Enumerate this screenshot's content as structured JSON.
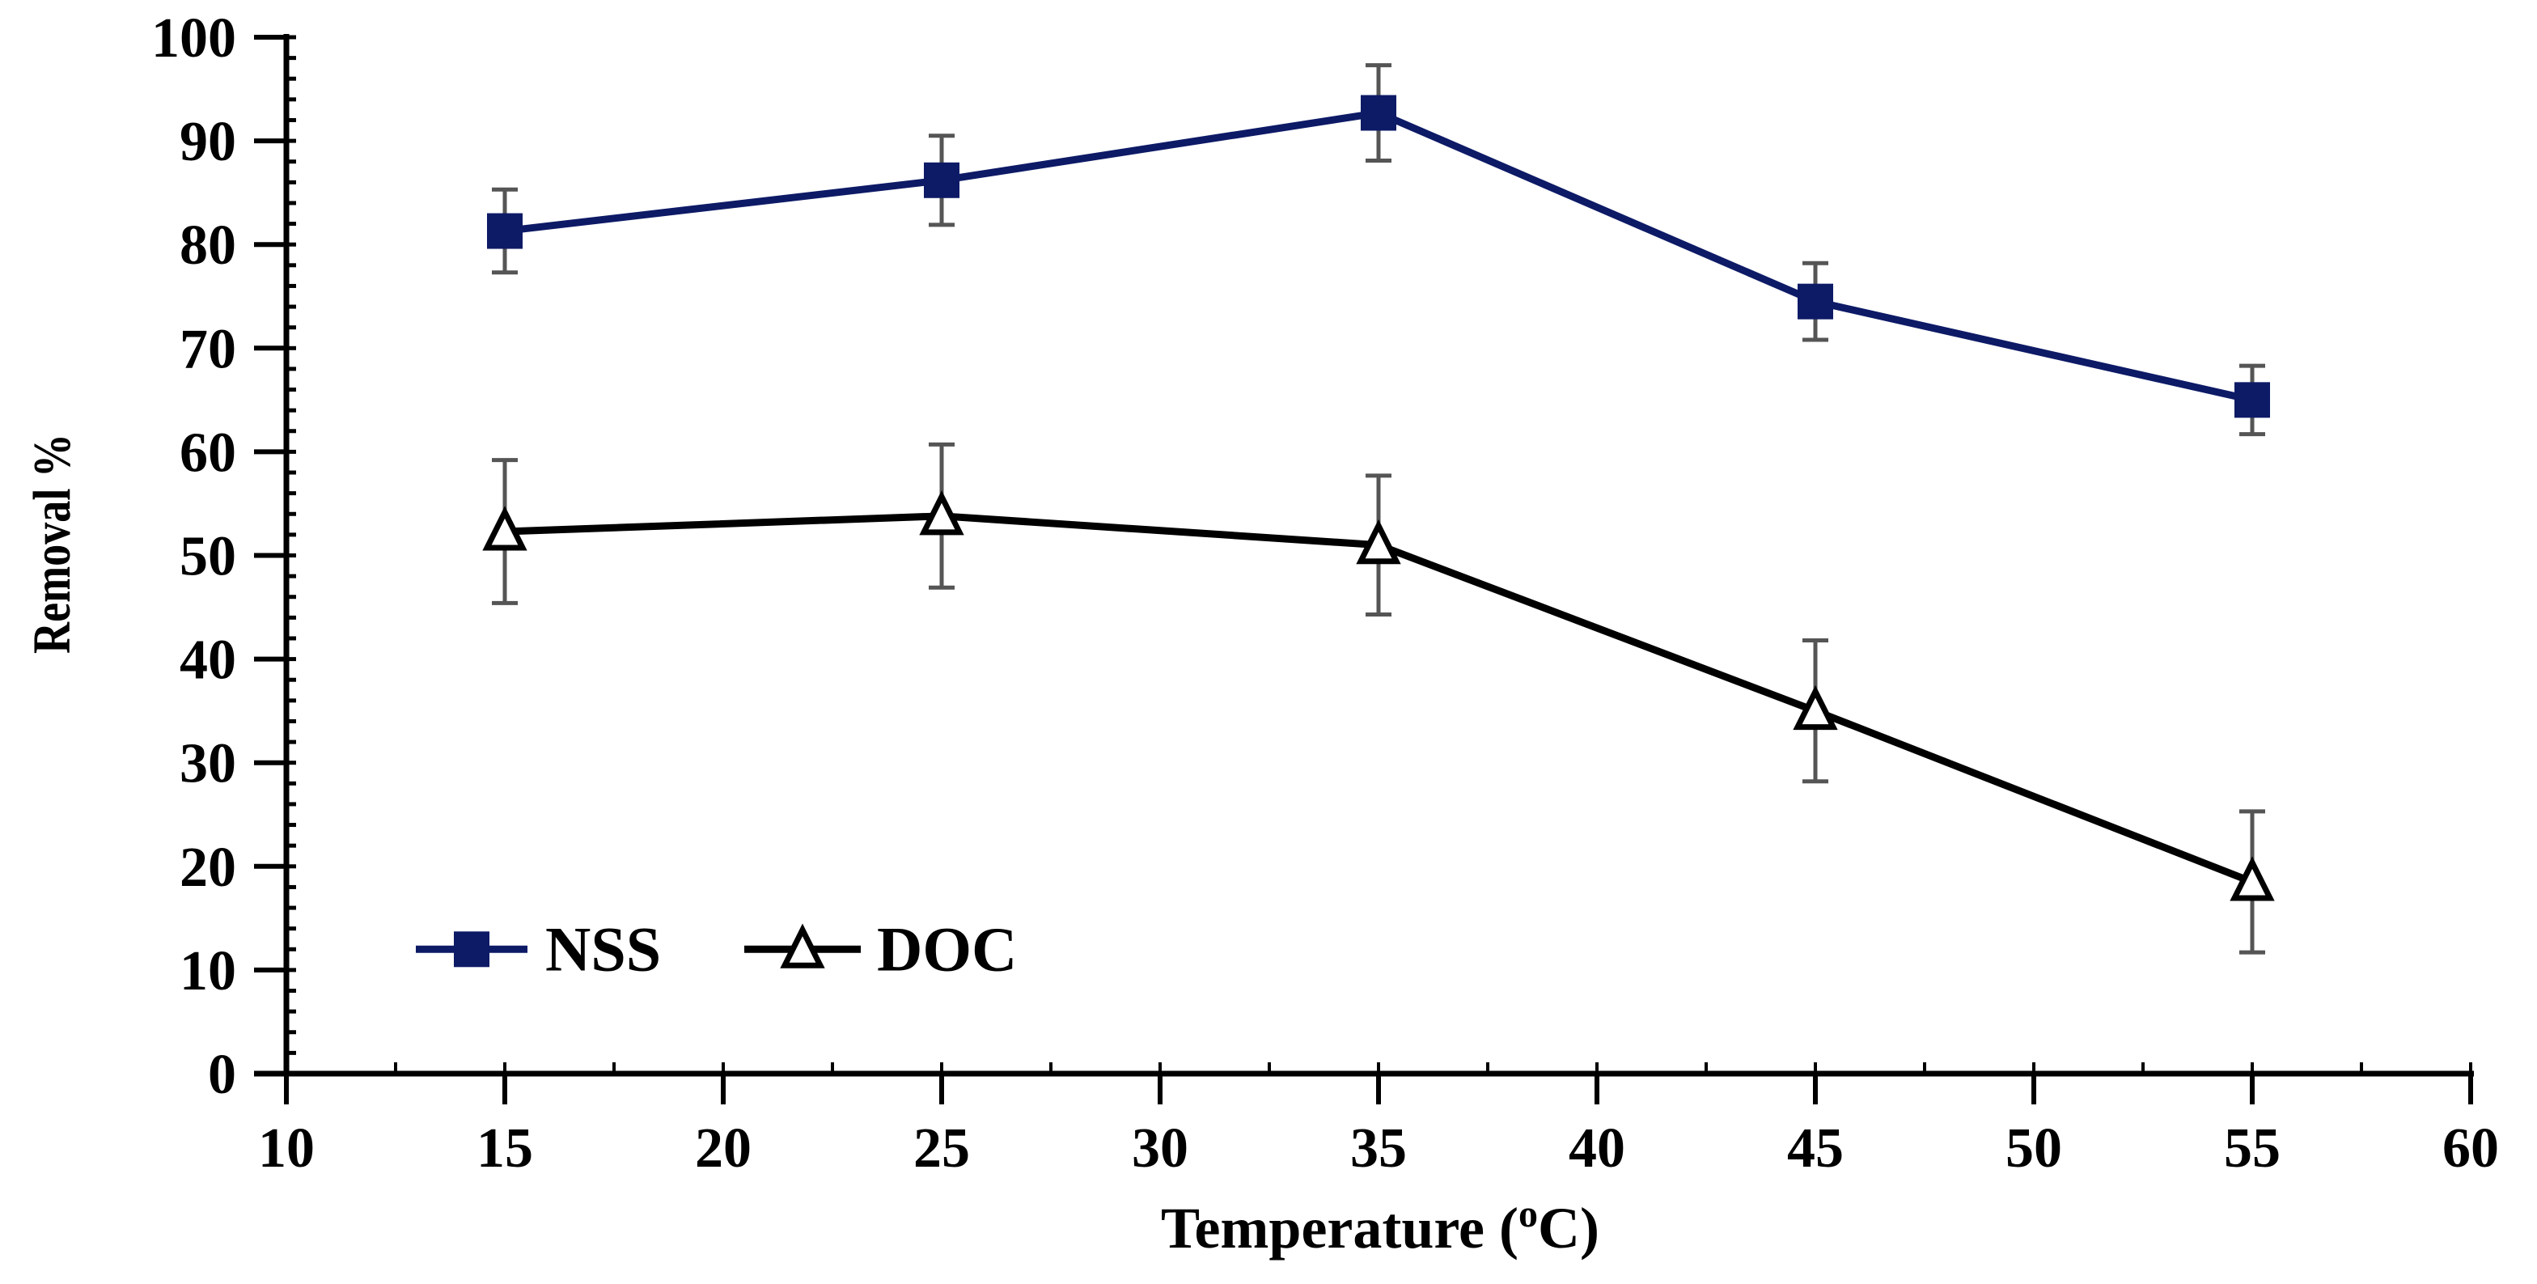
{
  "chart_data": {
    "type": "line",
    "title": "",
    "xlabel_main": "Temperature (",
    "xlabel_sup": "o",
    "xlabel_tail": "C)",
    "ylabel": "Removal %",
    "xlim": [
      10,
      60
    ],
    "ylim": [
      0,
      100
    ],
    "x_ticks": [
      10,
      15,
      20,
      25,
      30,
      35,
      40,
      45,
      50,
      55,
      60
    ],
    "y_ticks": [
      0,
      10,
      20,
      30,
      40,
      50,
      60,
      70,
      80,
      90,
      100
    ],
    "x_minor_step": 2.5,
    "y_minor_step": 2,
    "legend_position": "bottom-left",
    "series": [
      {
        "name": "NSS",
        "marker": "square",
        "color": "#0d1a66",
        "x": [
          15,
          25,
          35,
          45,
          55
        ],
        "y": [
          81.3,
          86.2,
          92.7,
          74.5,
          65.0
        ],
        "error": [
          4.0,
          4.3,
          4.6,
          3.7,
          3.3
        ]
      },
      {
        "name": "DOC",
        "marker": "triangle",
        "color": "#000000",
        "x": [
          15,
          25,
          35,
          45,
          55
        ],
        "y": [
          52.3,
          53.8,
          51.0,
          35.0,
          18.5
        ],
        "error": [
          6.9,
          6.9,
          6.7,
          6.8,
          6.8
        ]
      }
    ],
    "error_bar_color": "#555555"
  }
}
